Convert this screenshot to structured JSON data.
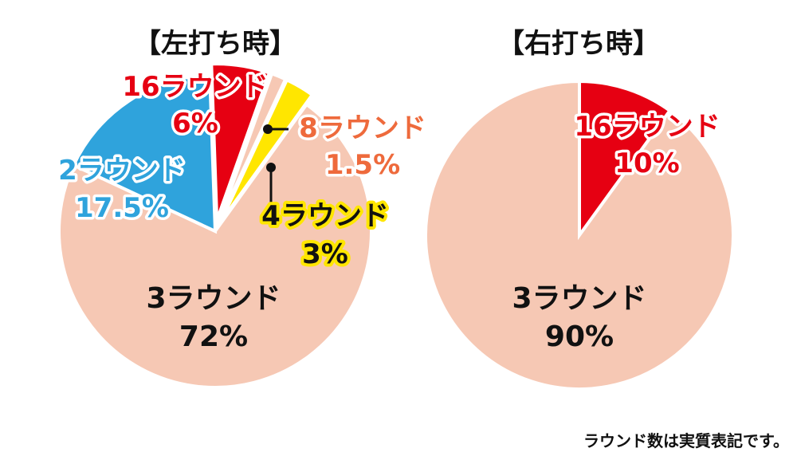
{
  "chart_data": [
    {
      "type": "pie",
      "title": "【左打ち時】",
      "slices": [
        {
          "name": "3ラウンド",
          "value": 72,
          "label_pct": "72%",
          "color": "#f6c8b4",
          "text_color": "#111111"
        },
        {
          "name": "2ラウンド",
          "value": 17.5,
          "label_pct": "17.5%",
          "color": "#2fa3dc",
          "text_color": "#2fa3dc"
        },
        {
          "name": "16ラウンド",
          "value": 6,
          "label_pct": "6%",
          "color": "#e60012",
          "text_color": "#e60012"
        },
        {
          "name": "8ラウンド",
          "value": 1.5,
          "label_pct": "1.5%",
          "color": "#f6c8b4",
          "text_color": "#ee6a3c"
        },
        {
          "name": "4ラウンド",
          "value": 3,
          "label_pct": "3%",
          "color": "#ffe600",
          "text_color": "#111111"
        }
      ]
    },
    {
      "type": "pie",
      "title": "【右打ち時】",
      "slices": [
        {
          "name": "16ラウンド",
          "value": 10,
          "label_pct": "10%",
          "color": "#e60012",
          "text_color": "#e60012"
        },
        {
          "name": "3ラウンド",
          "value": 90,
          "label_pct": "90%",
          "color": "#f6c8b4",
          "text_color": "#111111"
        }
      ]
    }
  ],
  "footnote": "ラウンド数は実質表記です。"
}
